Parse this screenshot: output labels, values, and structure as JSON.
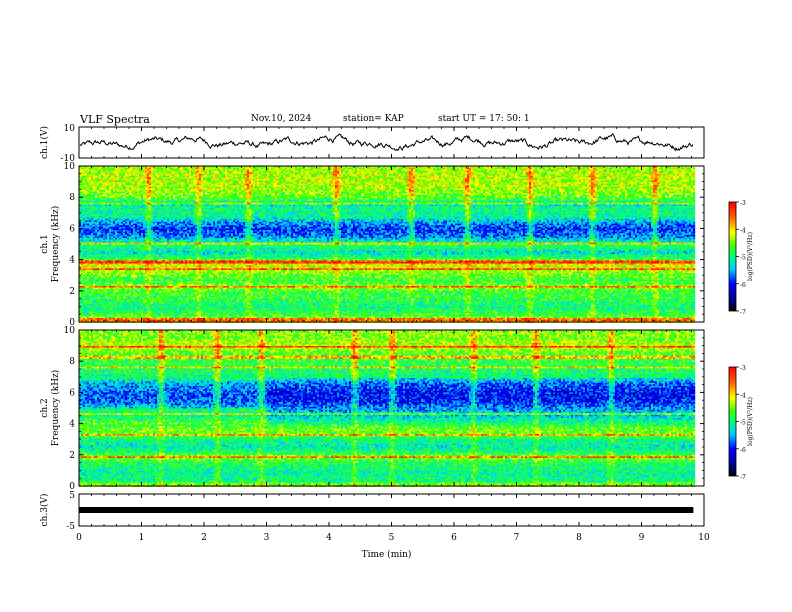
{
  "header": {
    "title": "VLF Spectra",
    "date": "Nov.10, 2024",
    "station": "station= KAP",
    "start_ut": "start  UT  =   17: 50: 1"
  },
  "chart_data": [
    {
      "type": "line",
      "panel": "ch1-waveform",
      "ylabel": "ch.1(V)",
      "ylim": [
        -10,
        10
      ],
      "yticks": [
        "10",
        "-10"
      ],
      "xlim": [
        0,
        10
      ],
      "data_extent_min": [
        0,
        9.83
      ],
      "approx_range_V": [
        -5,
        6
      ]
    },
    {
      "type": "heatmap",
      "panel": "ch1-spectrogram",
      "ylabel": "ch.1\nFrequency (kHz)",
      "ylabel_lines": [
        "ch.1",
        "Frequency (kHz)"
      ],
      "ylim": [
        0,
        10
      ],
      "yticks": [
        "0",
        "2",
        "4",
        "6",
        "8",
        "10"
      ],
      "xlim": [
        0,
        10
      ],
      "data_extent_min": [
        0,
        9.83
      ],
      "colorbar": {
        "label": "log(PSD)(V²/Hz)",
        "range": [
          -7,
          -3
        ],
        "ticks": [
          "-3",
          "-4",
          "-5",
          "-6",
          "-7"
        ]
      },
      "profile_freq_kHz": [
        0,
        0.3,
        0.6,
        1.0,
        1.5,
        2.0,
        2.3,
        2.7,
        3.0,
        3.4,
        3.6,
        3.9,
        4.1,
        4.5,
        5.0,
        5.2,
        5.6,
        6.0,
        6.4,
        6.8,
        7.2,
        7.6,
        8.0,
        8.5,
        9.0,
        9.5,
        10.0
      ],
      "profile_logPSD": [
        -4.0,
        -4.5,
        -4.8,
        -5.0,
        -4.8,
        -4.7,
        -4.4,
        -4.8,
        -4.6,
        -4.3,
        -4.2,
        -4.0,
        -4.8,
        -5.3,
        -4.8,
        -5.2,
        -5.7,
        -5.9,
        -5.6,
        -5.1,
        -5.0,
        -5.2,
        -4.6,
        -4.4,
        -4.3,
        -4.3,
        -4.4
      ],
      "lines_kHz": [
        0.2,
        2.3,
        3.4,
        3.9,
        5.1,
        7.6
      ],
      "bursts_min": [
        1.1,
        1.9,
        2.7,
        4.1,
        5.3,
        6.2,
        7.2,
        8.2,
        9.2
      ]
    },
    {
      "type": "heatmap",
      "panel": "ch2-spectrogram",
      "ylabel": "ch.2\nFrequency (kHz)",
      "ylabel_lines": [
        "ch.2",
        "Frequency (kHz)"
      ],
      "ylim": [
        0,
        10
      ],
      "yticks": [
        "0",
        "2",
        "4",
        "6",
        "8",
        "10"
      ],
      "xlim": [
        0,
        10
      ],
      "data_extent_min": [
        0,
        9.83
      ],
      "colorbar": {
        "label": "log(PSD)(V²/Hz)",
        "range": [
          -7,
          -3
        ],
        "ticks": [
          "-3",
          "-4",
          "-5",
          "-6",
          "-7"
        ]
      },
      "profile_freq_kHz": [
        0,
        0.4,
        0.8,
        1.2,
        1.6,
        1.9,
        2.2,
        2.6,
        3.0,
        3.3,
        3.6,
        3.9,
        4.2,
        4.6,
        5.0,
        5.4,
        5.8,
        6.2,
        6.6,
        7.0,
        7.4,
        7.8,
        8.2,
        8.6,
        9.0,
        9.5,
        10.0
      ],
      "profile_logPSD": [
        -4.2,
        -5.0,
        -5.1,
        -5.0,
        -4.8,
        -4.4,
        -4.9,
        -5.2,
        -5.0,
        -4.6,
        -4.5,
        -4.7,
        -5.1,
        -5.4,
        -5.3,
        -5.7,
        -5.8,
        -5.7,
        -5.5,
        -5.0,
        -4.9,
        -4.8,
        -4.7,
        -4.6,
        -4.2,
        -4.5,
        -4.4
      ],
      "lines_kHz": [
        1.9,
        3.3,
        4.7,
        7.6,
        8.3,
        9.0
      ],
      "regime_change_min": 3.0,
      "bursts_min": [
        1.3,
        2.2,
        2.9,
        4.4,
        5.0,
        6.3,
        7.3,
        8.5
      ]
    },
    {
      "type": "line",
      "panel": "ch3-waveform",
      "ylabel": "ch.3(V)",
      "ylim": [
        -5,
        5
      ],
      "yticks": [
        "5",
        "-5"
      ],
      "xlim": [
        0,
        10
      ],
      "data_extent_min": [
        0,
        9.83
      ],
      "constant_value_V": 0,
      "xlabel": "Time (min)",
      "xticks": [
        "0",
        "1",
        "2",
        "3",
        "4",
        "5",
        "6",
        "7",
        "8",
        "9",
        "10"
      ]
    }
  ]
}
